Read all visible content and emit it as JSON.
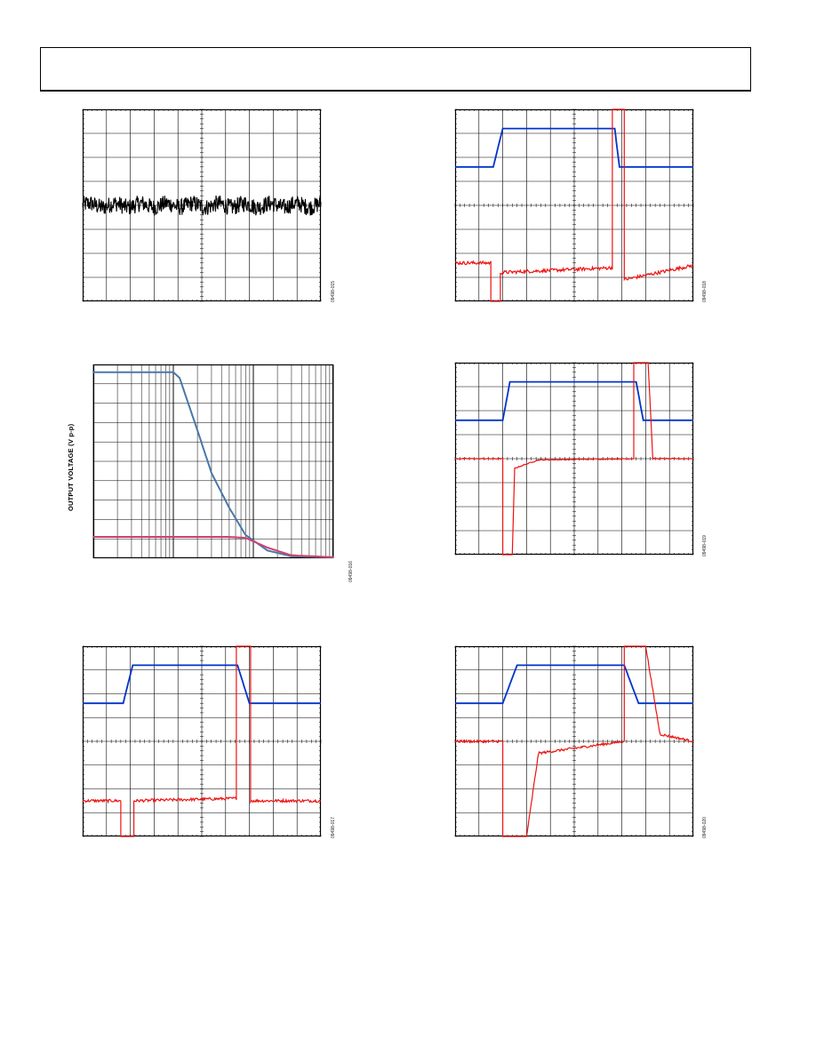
{
  "page": {
    "header": ""
  },
  "colors": {
    "grid": "#000000",
    "blue": "#0033cc",
    "red": "#ee1111",
    "black": "#000000",
    "steel_blue": "#4a78a8",
    "rose": "#d04070"
  },
  "figures": [
    {
      "id": "09498-015",
      "ylabel": ""
    },
    {
      "id": "09498-016",
      "ylabel": "OUTPUT VOLTAGE (V p-p)"
    },
    {
      "id": "09498-017",
      "ylabel": ""
    },
    {
      "id": "09498-018",
      "ylabel": ""
    },
    {
      "id": "09498-019",
      "ylabel": ""
    },
    {
      "id": "09498-020",
      "ylabel": ""
    }
  ],
  "chart_data": [
    {
      "type": "line",
      "panel": "noise",
      "grid": true,
      "x_divisions": 10,
      "y_divisions": 8,
      "ylim": [
        0,
        8
      ],
      "xlim": [
        0,
        10
      ],
      "series": [
        {
          "color": "#000000",
          "mean": 4.0,
          "amplitude": 0.35
        }
      ]
    },
    {
      "type": "line",
      "panel": "output-swing-vs-frequency",
      "ylabel": "OUTPUT VOLTAGE (V p-p)",
      "x_scale": "log",
      "xlim": [
        1,
        1000
      ],
      "ylim": [
        0,
        10
      ],
      "grid": true,
      "series": [
        {
          "color": "#4a78a8",
          "x": [
            1,
            10,
            12,
            20,
            30,
            50,
            80,
            150,
            300,
            1000
          ],
          "y": [
            9.6,
            9.6,
            9.3,
            6.6,
            4.4,
            2.6,
            1.2,
            0.4,
            0.1,
            0.05
          ]
        },
        {
          "color": "#d04070",
          "x": [
            1,
            50,
            80,
            150,
            300,
            1000
          ],
          "y": [
            1.1,
            1.1,
            1.05,
            0.55,
            0.15,
            0.05
          ]
        }
      ]
    },
    {
      "type": "line",
      "panel": "overload-recovery-1",
      "grid": true,
      "x_divisions": 10,
      "y_divisions": 8,
      "xlim": [
        0,
        10
      ],
      "ylim": [
        0,
        8
      ],
      "series": [
        {
          "color": "#0033cc",
          "x": [
            0,
            1.7,
            2.1,
            6.5,
            7.0,
            10
          ],
          "y": [
            5.6,
            5.6,
            7.2,
            7.2,
            5.6,
            5.6
          ]
        },
        {
          "color": "#ee1111",
          "x": [
            0,
            1.6,
            1.6,
            2.15,
            2.15,
            6.45,
            6.45,
            7.05,
            7.05,
            10
          ],
          "y": [
            1.5,
            1.5,
            0,
            0,
            1.5,
            1.6,
            8,
            8,
            1.5,
            1.5
          ]
        }
      ]
    },
    {
      "type": "line",
      "panel": "overload-recovery-2",
      "grid": true,
      "x_divisions": 10,
      "y_divisions": 8,
      "xlim": [
        0,
        10
      ],
      "ylim": [
        0,
        8
      ],
      "series": [
        {
          "color": "#0033cc",
          "x": [
            0,
            1.6,
            2.0,
            6.7,
            6.9,
            10
          ],
          "y": [
            5.6,
            5.6,
            7.2,
            7.2,
            5.6,
            5.6
          ]
        },
        {
          "color": "#ee1111",
          "x": [
            0,
            1.5,
            1.5,
            1.9,
            1.9,
            6.6,
            6.6,
            7.1,
            7.1,
            10
          ],
          "y": [
            1.6,
            1.6,
            0,
            0,
            1.2,
            1.4,
            8,
            8,
            0.9,
            1.5
          ]
        }
      ]
    },
    {
      "type": "line",
      "panel": "overload-recovery-3",
      "grid": true,
      "x_divisions": 10,
      "y_divisions": 8,
      "xlim": [
        0,
        10
      ],
      "ylim": [
        0,
        8
      ],
      "series": [
        {
          "color": "#0033cc",
          "x": [
            0,
            2.0,
            2.3,
            7.6,
            7.9,
            10
          ],
          "y": [
            5.6,
            5.6,
            7.2,
            7.2,
            5.6,
            5.6
          ]
        },
        {
          "color": "#ee1111",
          "x": [
            0,
            2.0,
            2.0,
            2.4,
            2.5,
            3.5,
            7.5,
            7.5,
            8.1,
            8.3,
            10
          ],
          "y": [
            4.0,
            4.0,
            0,
            0,
            3.6,
            3.95,
            4.0,
            8,
            8,
            4.0,
            4.0
          ]
        }
      ]
    },
    {
      "type": "line",
      "panel": "overload-recovery-4",
      "grid": true,
      "x_divisions": 10,
      "y_divisions": 8,
      "xlim": [
        0,
        10
      ],
      "ylim": [
        0,
        8
      ],
      "series": [
        {
          "color": "#0033cc",
          "x": [
            0,
            2.0,
            2.6,
            7.1,
            7.7,
            10
          ],
          "y": [
            5.6,
            5.6,
            7.2,
            7.2,
            5.6,
            5.6
          ]
        },
        {
          "color": "#ee1111",
          "x": [
            0,
            2.0,
            2.0,
            3.0,
            3.5,
            7.1,
            7.1,
            8.0,
            8.6,
            10
          ],
          "y": [
            4.0,
            4.0,
            0,
            0,
            3.5,
            4.0,
            8,
            8,
            4.3,
            4.0
          ]
        }
      ]
    }
  ]
}
